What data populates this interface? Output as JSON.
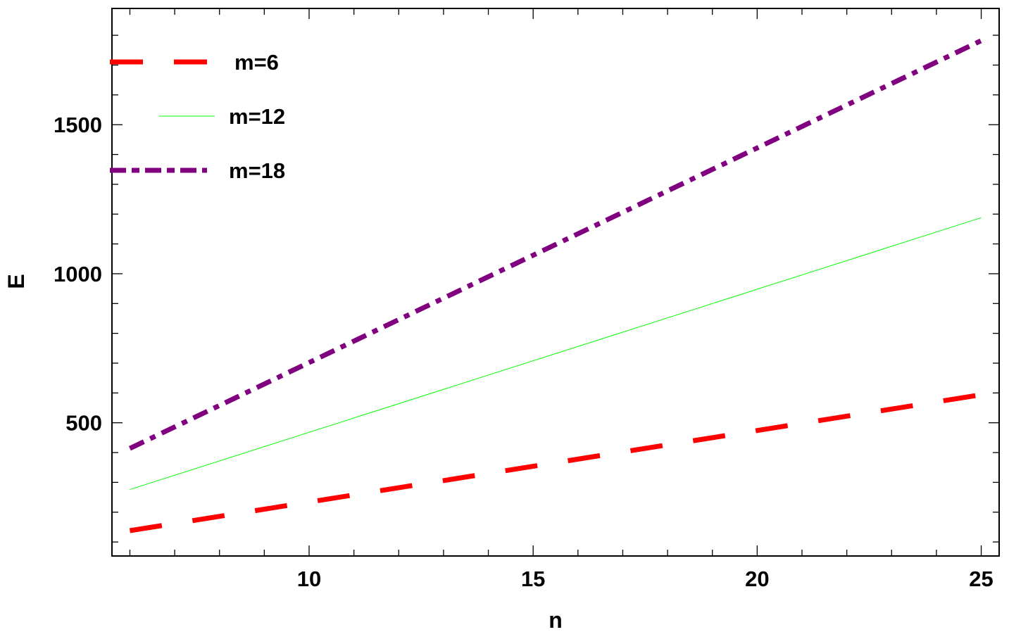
{
  "chart_data": {
    "type": "line",
    "title": "",
    "xlabel": "n",
    "ylabel": "E",
    "xlim": [
      5.6,
      25.4
    ],
    "ylim": [
      53,
      1890
    ],
    "x_ticks": [
      10,
      15,
      20,
      25
    ],
    "y_ticks": [
      500,
      1000,
      1500
    ],
    "x_minor_step": 1,
    "y_minor_step": 100,
    "grid": false,
    "legend_position": "upper-left",
    "x": [
      6,
      25
    ],
    "series": [
      {
        "name": "m=6",
        "color": "#ff0000",
        "style": "dashed",
        "width": 7,
        "values": [
          138,
          594
        ]
      },
      {
        "name": "m=12",
        "color": "#00ff00",
        "style": "solid",
        "width": 1,
        "values": [
          276,
          1188
        ]
      },
      {
        "name": "m=18",
        "color": "#800080",
        "style": "dash-dot",
        "width": 7,
        "values": [
          414,
          1782
        ]
      }
    ]
  }
}
